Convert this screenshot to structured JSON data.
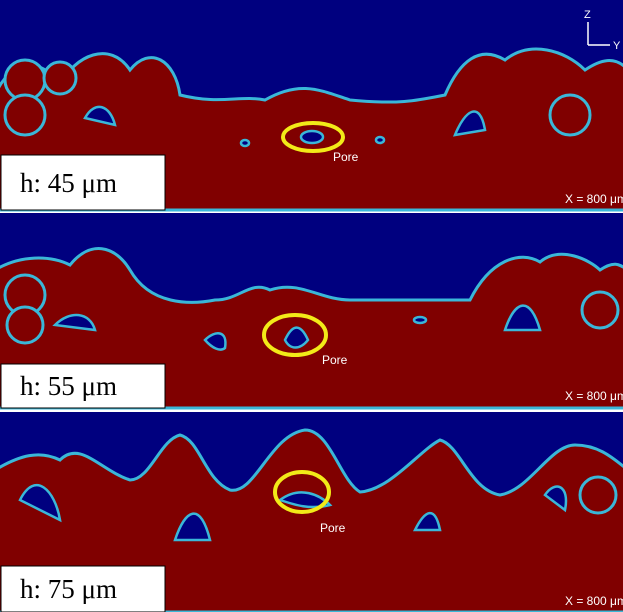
{
  "panels": [
    {
      "label": "h: 45 μm",
      "pore_label": "Pore",
      "scale_label": "X = 800 μm"
    },
    {
      "label": "h: 55 μm",
      "pore_label": "Pore",
      "scale_label": "X = 800 μm"
    },
    {
      "label": "h: 75 μm",
      "pore_label": "Pore",
      "scale_label": "X = 800 μm"
    }
  ],
  "axis_labels": {
    "z": "Z",
    "y": "Y"
  }
}
